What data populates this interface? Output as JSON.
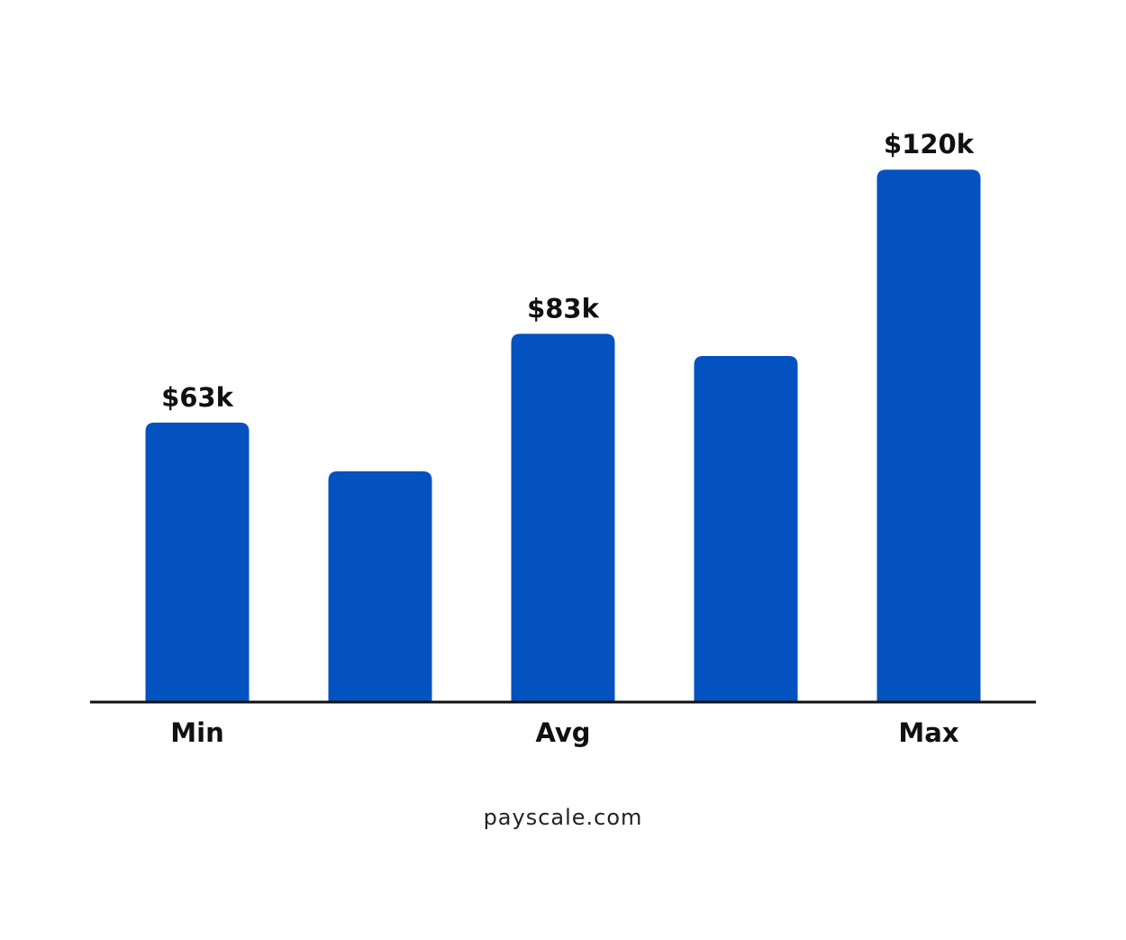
{
  "chart_data": {
    "type": "bar",
    "categories": [
      "Min",
      null,
      "Avg",
      null,
      "Max"
    ],
    "values": [
      63000,
      52000,
      83000,
      78000,
      120000
    ],
    "value_labels": [
      "$63k",
      null,
      "$83k",
      null,
      "$120k"
    ],
    "color": "#0452bf",
    "ylim": [
      0,
      130000
    ],
    "source": "payscale.com"
  }
}
